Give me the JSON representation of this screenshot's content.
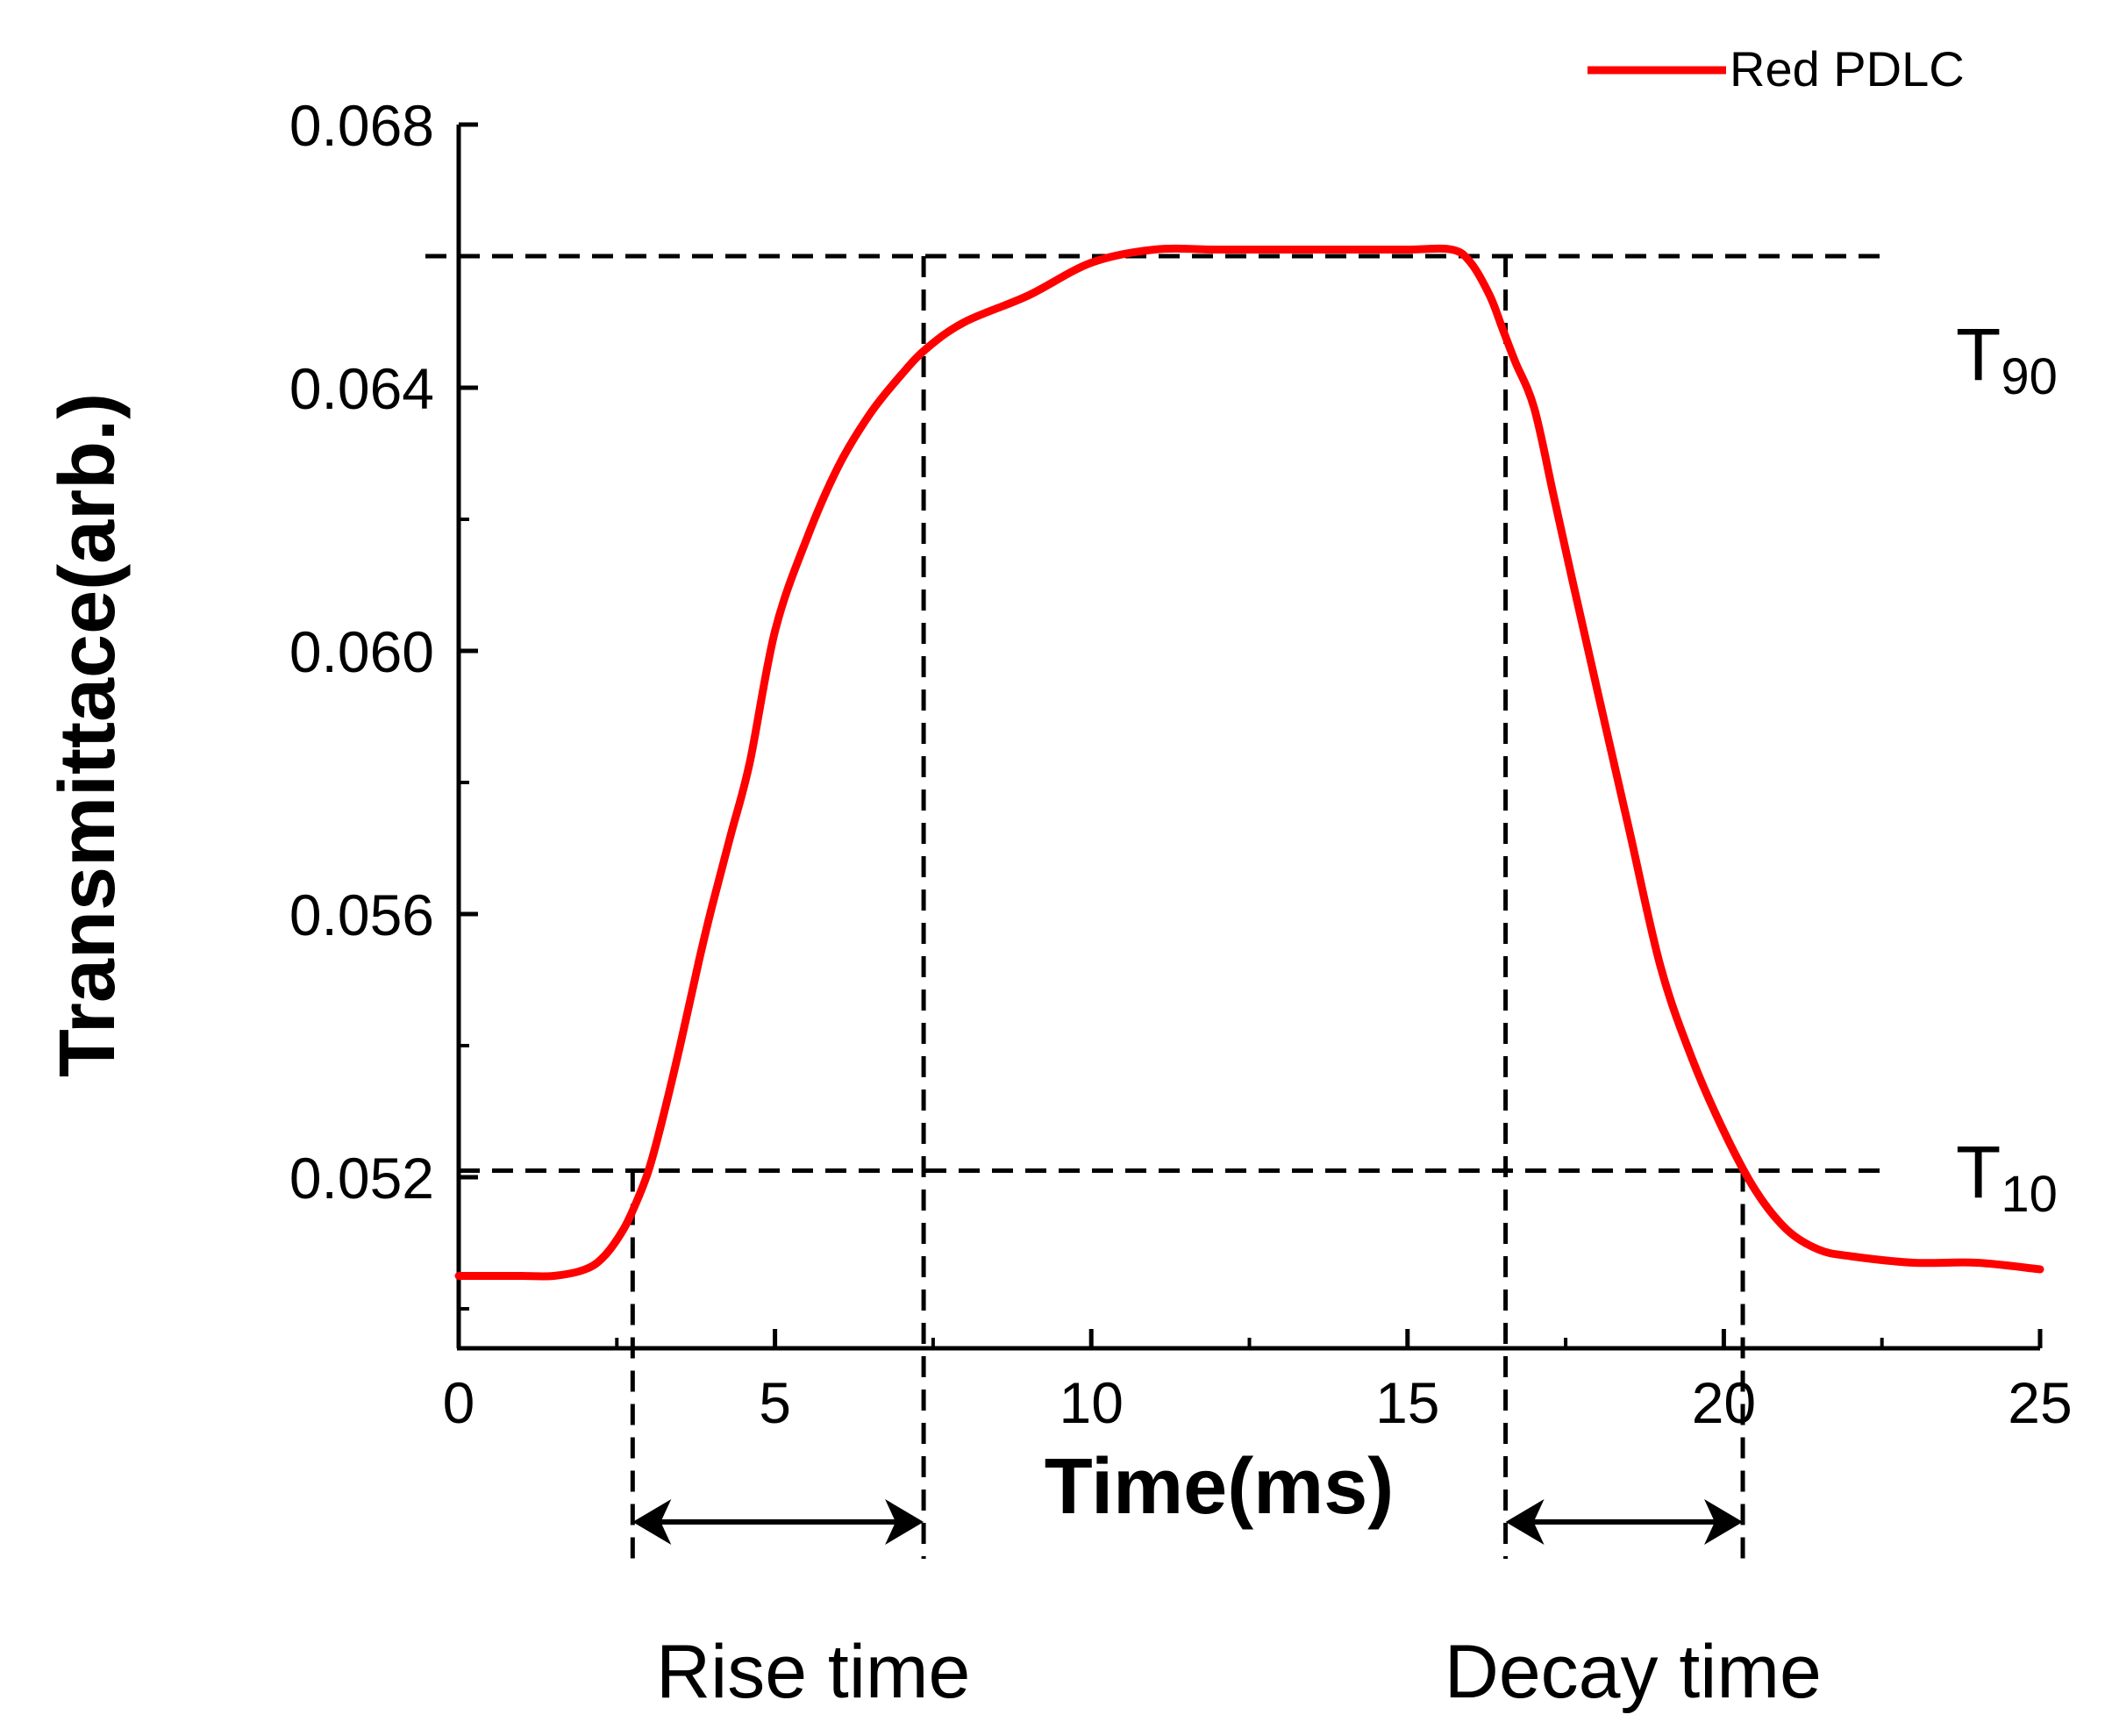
{
  "chart_data": {
    "type": "line",
    "title": "",
    "xlabel": "Time(ms)",
    "ylabel": "Transmittace(arb.)",
    "xlim": [
      0,
      25
    ],
    "ylim": [
      0.0494,
      0.068
    ],
    "x_ticks": [
      0,
      5,
      10,
      15,
      20,
      25
    ],
    "x_tick_labels": [
      "0",
      "5",
      "10",
      "15",
      "20",
      "25"
    ],
    "y_ticks": [
      0.052,
      0.056,
      0.06,
      0.064,
      0.068
    ],
    "y_tick_labels": [
      "0.052",
      "0.056",
      "0.060",
      "0.064",
      "0.068"
    ],
    "grid": false,
    "legend": {
      "position": "top-right",
      "entries": [
        "Red PDLC"
      ]
    },
    "series": [
      {
        "name": "Red PDLC",
        "color": "#ff0000",
        "x": [
          0,
          0.5,
          1,
          1.5,
          2,
          2.3,
          2.6,
          2.8,
          3,
          3.2,
          3.5,
          3.8,
          4,
          4.3,
          4.6,
          5,
          5.5,
          6,
          6.5,
          7,
          7.4,
          8,
          9,
          10,
          11,
          12,
          13,
          14,
          15,
          15.7,
          16,
          16.3,
          16.5,
          16.7,
          17,
          17.3,
          17.6,
          18,
          18.5,
          19,
          19.5,
          20,
          20.5,
          21,
          21.5,
          22,
          23,
          24,
          25
        ],
        "y": [
          0.0505,
          0.0505,
          0.0505,
          0.0505,
          0.0506,
          0.0508,
          0.0512,
          0.0516,
          0.0521,
          0.0528,
          0.054,
          0.0553,
          0.0561,
          0.0572,
          0.0583,
          0.0603,
          0.0617,
          0.0628,
          0.0636,
          0.0642,
          0.0646,
          0.065,
          0.0654,
          0.0659,
          0.0661,
          0.0661,
          0.0661,
          0.0661,
          0.0661,
          0.0661,
          0.0659,
          0.0654,
          0.0649,
          0.0644,
          0.0637,
          0.0624,
          0.0611,
          0.0594,
          0.0573,
          0.0552,
          0.0538,
          0.0527,
          0.0518,
          0.0512,
          0.0509,
          0.0508,
          0.0507,
          0.0507,
          0.0506
        ]
      }
    ],
    "annotations": {
      "t90": {
        "base": "T",
        "sub": "90",
        "y": 0.066
      },
      "t10": {
        "base": "T",
        "sub": "10",
        "y": 0.0521
      },
      "rise": {
        "label": "Rise time",
        "x_start": 2.75,
        "x_end": 7.35
      },
      "decay": {
        "label": "Decay time",
        "x_start": 16.55,
        "x_end": 20.3
      }
    }
  }
}
